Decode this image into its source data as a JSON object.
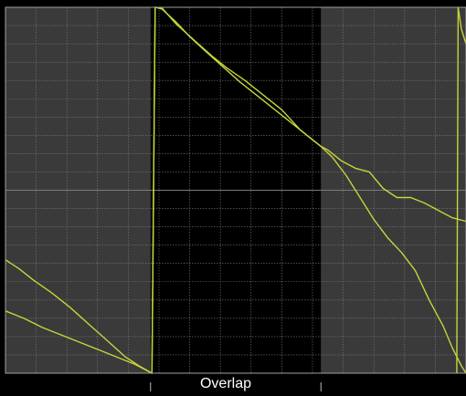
{
  "chart_data": {
    "type": "line",
    "title": "",
    "xlabel": "",
    "ylabel": "",
    "xlim": [
      0,
      100
    ],
    "ylim": [
      0,
      100
    ],
    "grid": true,
    "overlap_region": {
      "label": "Overlap",
      "x_start": 31.5,
      "x_end": 68.5
    },
    "colors": {
      "page": "#000000",
      "plot_background": "#3a3a3a",
      "overlap_background": "#000000",
      "grid": "#7a7a7a",
      "trace": "#c8d43a",
      "frame": "#a0a0a0",
      "tick": "#bbbbbb",
      "label": "#ffffff"
    },
    "series": [
      {
        "points": [
          [
            0,
            31
          ],
          [
            3,
            28.5
          ],
          [
            6,
            25.5
          ],
          [
            10,
            22
          ],
          [
            14,
            18
          ],
          [
            18,
            13.5
          ],
          [
            22,
            9
          ],
          [
            26,
            4.5
          ],
          [
            29,
            2
          ],
          [
            31.8,
            0
          ],
          [
            32.5,
            100
          ],
          [
            34,
            99.5
          ],
          [
            37,
            96
          ],
          [
            40,
            92
          ],
          [
            43,
            88.5
          ],
          [
            47,
            84
          ],
          [
            51,
            79.5
          ],
          [
            55,
            75.5
          ],
          [
            59,
            71.5
          ],
          [
            63,
            67.5
          ],
          [
            66,
            64.5
          ],
          [
            68.5,
            62
          ],
          [
            71,
            59
          ],
          [
            74,
            54
          ],
          [
            77,
            48
          ],
          [
            80,
            42
          ],
          [
            83,
            37
          ],
          [
            86,
            33
          ],
          [
            89,
            28
          ],
          [
            92,
            20
          ],
          [
            95,
            13
          ],
          [
            97,
            7
          ],
          [
            99,
            2
          ],
          [
            100,
            0
          ]
        ]
      },
      {
        "points": [
          [
            0,
            17
          ],
          [
            4,
            15
          ],
          [
            8,
            12.5
          ],
          [
            12,
            10.5
          ],
          [
            16,
            8.5
          ],
          [
            20,
            6.5
          ],
          [
            24,
            4.5
          ],
          [
            28,
            2.5
          ],
          [
            31.8,
            0
          ],
          [
            32.5,
            100
          ],
          [
            34,
            99.8
          ],
          [
            37,
            95.5
          ],
          [
            41,
            91
          ],
          [
            45,
            86.5
          ],
          [
            48,
            83.5
          ],
          [
            52,
            80
          ],
          [
            56,
            76
          ],
          [
            60,
            72
          ],
          [
            64,
            66.5
          ],
          [
            68.5,
            62
          ],
          [
            70,
            61
          ],
          [
            73,
            58
          ],
          [
            76,
            56
          ],
          [
            79,
            55
          ],
          [
            82,
            50.5
          ],
          [
            85,
            48
          ],
          [
            88,
            48
          ],
          [
            91,
            46.5
          ],
          [
            94,
            44.5
          ],
          [
            97,
            42.5
          ],
          [
            100,
            41.5
          ]
        ]
      },
      {
        "points": [
          [
            98,
            0
          ],
          [
            98.3,
            100
          ],
          [
            99,
            94
          ],
          [
            100,
            90
          ]
        ]
      }
    ]
  }
}
